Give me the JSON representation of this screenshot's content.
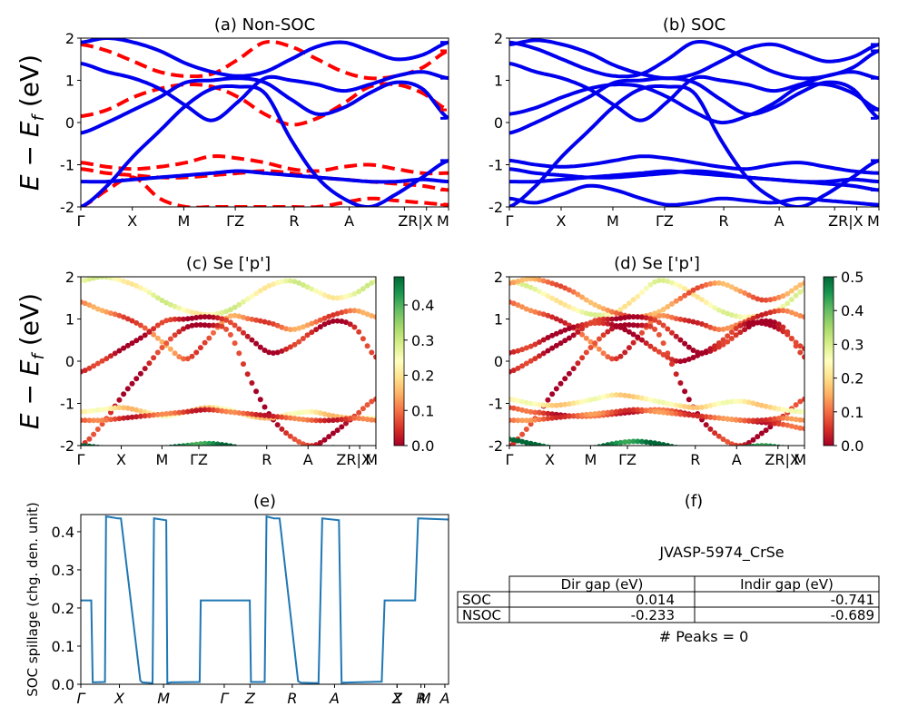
{
  "figure": {
    "ylabel_main": "E − E_f (eV)"
  },
  "chart_data": [
    {
      "id": "a",
      "type": "line",
      "title": "(a) Non-SOC",
      "ylabel": "E − E_f (eV)",
      "ylim": [
        -2,
        2
      ],
      "yticks": [
        -2,
        -1,
        0,
        1,
        2
      ],
      "xticks": [
        "Γ",
        "X",
        "M",
        "ΓZ",
        "R",
        "A",
        "ZR|X",
        "M"
      ],
      "series": [
        {
          "style": "spin-down",
          "color": "#ff0000",
          "dashed": true,
          "bands": [
            [
              1.85,
              1.7,
              1.45,
              1.2,
              1.1,
              1.15,
              1.5,
              1.9,
              1.8,
              1.5,
              1.2,
              1.05,
              1.1,
              1.3,
              1.7
            ],
            [
              0.15,
              0.3,
              0.6,
              0.8,
              0.9,
              0.85,
              0.6,
              0.2,
              -0.05,
              0.1,
              0.45,
              0.85,
              0.9,
              0.7,
              0.3
            ],
            [
              -0.95,
              -1.05,
              -1.1,
              -1.05,
              -0.95,
              -0.8,
              -0.85,
              -0.95,
              -1.1,
              -1.15,
              -1.05,
              -1.0,
              -1.1,
              -1.2,
              -1.2
            ],
            [
              -1.1,
              -1.2,
              -1.25,
              -1.3,
              -1.3,
              -1.25,
              -1.2,
              -1.15,
              -1.2,
              -1.3,
              -1.35,
              -1.4,
              -1.45,
              -1.5,
              -1.6
            ],
            [
              -2.0,
              -1.6,
              -1.3,
              -1.8,
              -2.0,
              -2.0,
              -2.0,
              -2.0,
              -2.0,
              -2.0,
              -1.9,
              -1.8,
              -1.85,
              -1.9,
              -1.95
            ]
          ]
        },
        {
          "style": "spin-up",
          "color": "#0000ee",
          "dashed": false,
          "bands": [
            [
              1.9,
              2.0,
              1.9,
              1.7,
              1.4,
              1.2,
              1.1,
              1.2,
              1.5,
              1.8,
              1.9,
              1.7,
              1.5,
              1.6,
              1.9
            ],
            [
              1.4,
              1.2,
              1.05,
              0.8,
              0.4,
              0.05,
              0.5,
              1.05,
              1.0,
              0.9,
              0.75,
              0.9,
              1.1,
              1.2,
              1.05
            ],
            [
              -0.25,
              0.0,
              0.3,
              0.6,
              0.95,
              1.0,
              1.05,
              0.95,
              0.55,
              0.2,
              0.35,
              0.7,
              0.95,
              0.8,
              0.1
            ],
            [
              -2.0,
              -1.5,
              -0.8,
              -0.2,
              0.4,
              0.8,
              0.85,
              0.7,
              -0.4,
              -1.3,
              -1.8,
              -2.0,
              -1.7,
              -1.3,
              -0.9
            ],
            [
              -1.4,
              -1.4,
              -1.35,
              -1.3,
              -1.25,
              -1.2,
              -1.15,
              -1.2,
              -1.25,
              -1.3,
              -1.35,
              -1.4,
              -1.4,
              -1.35,
              -1.4
            ]
          ]
        }
      ]
    },
    {
      "id": "b",
      "type": "line",
      "title": "(b) SOC",
      "ylim": [
        -2,
        2
      ],
      "yticks": [
        -2,
        -1,
        0,
        1,
        2
      ],
      "xticks": [
        "Γ",
        "X",
        "M",
        "ΓZ",
        "R",
        "A",
        "ZR|X",
        "M"
      ],
      "series": [
        {
          "style": "bands",
          "color": "#0000ee",
          "dashed": false,
          "bands": [
            [
              1.9,
              1.75,
              1.5,
              1.25,
              1.1,
              1.15,
              1.5,
              1.9,
              1.8,
              1.5,
              1.2,
              1.05,
              1.1,
              1.3,
              1.7
            ],
            [
              1.85,
              1.95,
              1.85,
              1.65,
              1.35,
              1.15,
              1.05,
              1.15,
              1.45,
              1.75,
              1.85,
              1.65,
              1.45,
              1.55,
              1.85
            ],
            [
              1.4,
              1.2,
              1.05,
              0.8,
              0.4,
              0.05,
              0.5,
              1.05,
              1.0,
              0.9,
              0.75,
              0.9,
              1.1,
              1.2,
              1.05
            ],
            [
              0.2,
              0.35,
              0.6,
              0.8,
              0.9,
              0.85,
              0.6,
              0.25,
              0.0,
              0.15,
              0.45,
              0.85,
              0.9,
              0.7,
              0.3
            ],
            [
              -0.25,
              0.0,
              0.3,
              0.6,
              0.95,
              1.0,
              1.05,
              0.95,
              0.55,
              0.2,
              0.35,
              0.7,
              0.95,
              0.8,
              0.1
            ],
            [
              -2.0,
              -1.5,
              -0.8,
              -0.2,
              0.4,
              0.8,
              0.85,
              0.7,
              -0.4,
              -1.3,
              -1.8,
              -2.0,
              -1.7,
              -1.3,
              -0.9
            ],
            [
              -0.9,
              -1.0,
              -1.05,
              -1.0,
              -0.9,
              -0.8,
              -0.85,
              -0.95,
              -1.05,
              -1.1,
              -1.0,
              -0.95,
              -1.05,
              -1.15,
              -1.2
            ],
            [
              -1.1,
              -1.2,
              -1.25,
              -1.3,
              -1.3,
              -1.25,
              -1.2,
              -1.15,
              -1.2,
              -1.3,
              -1.35,
              -1.4,
              -1.45,
              -1.5,
              -1.6
            ],
            [
              -1.4,
              -1.4,
              -1.35,
              -1.3,
              -1.25,
              -1.2,
              -1.15,
              -1.2,
              -1.25,
              -1.3,
              -1.35,
              -1.4,
              -1.4,
              -1.35,
              -1.4
            ],
            [
              -1.8,
              -1.9,
              -1.7,
              -1.5,
              -1.6,
              -1.8,
              -1.95,
              -1.9,
              -1.8,
              -1.85,
              -1.9,
              -1.8,
              -1.85,
              -1.9,
              -1.95
            ]
          ]
        }
      ]
    },
    {
      "id": "c",
      "type": "scatter",
      "title": "(c)  Se ['p']",
      "ylabel": "E − E_f (eV)",
      "ylim": [
        -2,
        2
      ],
      "yticks": [
        -2,
        -1,
        0,
        1,
        2
      ],
      "xticks": [
        "Γ",
        "X",
        "M",
        "ΓZ",
        "R",
        "A",
        "ZR|X",
        "M"
      ],
      "colorbar": {
        "min": 0.0,
        "max": 0.48,
        "ticks": [
          0.0,
          0.1,
          0.2,
          0.3,
          0.4
        ]
      },
      "bands": [
        {
          "weight": 0.25,
          "values": [
            1.9,
            2.0,
            1.9,
            1.7,
            1.4,
            1.2,
            1.1,
            1.2,
            1.5,
            1.8,
            1.9,
            1.7,
            1.5,
            1.6,
            1.9
          ]
        },
        {
          "weight": 0.1,
          "values": [
            1.4,
            1.2,
            1.05,
            0.8,
            0.4,
            0.05,
            0.5,
            1.05,
            1.0,
            0.9,
            0.75,
            0.9,
            1.1,
            1.2,
            1.05
          ]
        },
        {
          "weight": 0.02,
          "values": [
            -0.25,
            0.0,
            0.3,
            0.6,
            0.95,
            1.0,
            1.05,
            0.95,
            0.55,
            0.2,
            0.35,
            0.7,
            0.95,
            0.8,
            0.1
          ]
        },
        {
          "weight": 0.03,
          "values": [
            -2.0,
            -1.5,
            -0.8,
            -0.2,
            0.4,
            0.8,
            0.85,
            0.7,
            -0.4,
            -1.3,
            -1.8,
            -2.0,
            -1.7,
            -1.3,
            -0.9
          ]
        },
        {
          "weight": 0.2,
          "values": [
            -1.2,
            -1.15,
            -1.1,
            -1.2,
            -1.3,
            -1.2,
            -1.1,
            -1.15,
            -1.3,
            -1.35,
            -1.25,
            -1.2,
            -1.3,
            -1.35,
            -1.35
          ]
        },
        {
          "weight": 0.07,
          "values": [
            -1.4,
            -1.4,
            -1.35,
            -1.3,
            -1.25,
            -1.2,
            -1.15,
            -1.2,
            -1.25,
            -1.3,
            -1.35,
            -1.4,
            -1.4,
            -1.35,
            -1.4
          ]
        },
        {
          "weight": 0.45,
          "values": [
            -2.0,
            -2.05,
            -2.1,
            -2.1,
            -2.05,
            -2.0,
            -1.95,
            -2.0,
            -2.1,
            -2.1,
            -2.1,
            -2.1,
            -2.05,
            -2.1,
            -2.1
          ]
        }
      ]
    },
    {
      "id": "d",
      "type": "scatter",
      "title": "(d) Se ['p']",
      "ylim": [
        -2,
        2
      ],
      "yticks": [
        -2,
        -1,
        0,
        1,
        2
      ],
      "xticks": [
        "Γ",
        "X",
        "M",
        "ΓZ",
        "R",
        "A",
        "ZR|X",
        "M"
      ],
      "colorbar": {
        "min": 0.0,
        "max": 0.5,
        "ticks": [
          0.0,
          0.1,
          0.2,
          0.3,
          0.4,
          0.5
        ]
      },
      "bands": [
        {
          "weight": 0.25,
          "values": [
            1.9,
            1.75,
            1.5,
            1.25,
            1.1,
            1.15,
            1.5,
            1.9,
            1.8,
            1.5,
            1.2,
            1.05,
            1.1,
            1.3,
            1.7
          ]
        },
        {
          "weight": 0.12,
          "values": [
            1.85,
            1.95,
            1.85,
            1.65,
            1.35,
            1.15,
            1.05,
            1.15,
            1.45,
            1.75,
            1.85,
            1.65,
            1.45,
            1.55,
            1.85
          ]
        },
        {
          "weight": 0.08,
          "values": [
            1.4,
            1.2,
            1.05,
            0.8,
            0.4,
            0.05,
            0.5,
            1.05,
            1.0,
            0.9,
            0.75,
            0.9,
            1.1,
            1.2,
            1.05
          ]
        },
        {
          "weight": 0.02,
          "values": [
            0.2,
            0.35,
            0.6,
            0.8,
            0.9,
            0.85,
            0.6,
            0.25,
            0.0,
            0.15,
            0.45,
            0.85,
            0.9,
            0.7,
            0.3
          ]
        },
        {
          "weight": 0.02,
          "values": [
            -0.25,
            0.0,
            0.3,
            0.6,
            0.95,
            1.0,
            1.05,
            0.95,
            0.55,
            0.2,
            0.35,
            0.7,
            0.95,
            0.8,
            0.1
          ]
        },
        {
          "weight": 0.03,
          "values": [
            -2.0,
            -1.5,
            -0.8,
            -0.2,
            0.4,
            0.8,
            0.85,
            0.7,
            -0.4,
            -1.3,
            -1.8,
            -2.0,
            -1.7,
            -1.3,
            -0.9
          ]
        },
        {
          "weight": 0.22,
          "values": [
            -0.9,
            -1.0,
            -1.05,
            -1.0,
            -0.9,
            -0.8,
            -0.85,
            -0.95,
            -1.05,
            -1.1,
            -1.0,
            -0.95,
            -1.05,
            -1.15,
            -1.2
          ]
        },
        {
          "weight": 0.06,
          "values": [
            -1.1,
            -1.2,
            -1.25,
            -1.3,
            -1.3,
            -1.25,
            -1.2,
            -1.15,
            -1.2,
            -1.3,
            -1.35,
            -1.4,
            -1.45,
            -1.5,
            -1.6
          ]
        },
        {
          "weight": 0.09,
          "values": [
            -1.4,
            -1.4,
            -1.35,
            -1.3,
            -1.25,
            -1.2,
            -1.15,
            -1.2,
            -1.25,
            -1.3,
            -1.35,
            -1.4,
            -1.4,
            -1.35,
            -1.4
          ]
        },
        {
          "weight": 0.48,
          "values": [
            -1.85,
            -1.95,
            -2.05,
            -2.1,
            -2.05,
            -1.95,
            -1.9,
            -1.95,
            -2.05,
            -2.1,
            -2.1,
            -2.05,
            -2.0,
            -2.05,
            -2.1
          ]
        }
      ]
    },
    {
      "id": "e",
      "type": "line",
      "title": "(e)",
      "ylabel": "SOC spillage (chg. den. unit)",
      "ylim": [
        0.0,
        0.445
      ],
      "yticks": [
        0.0,
        0.1,
        0.2,
        0.3,
        0.4
      ],
      "xticks": [
        "Γ",
        "X",
        "M",
        "Γ",
        "Z",
        "R",
        "A",
        "X",
        "Z",
        "R",
        "M",
        "A"
      ],
      "x": [
        0,
        2.8,
        3.2,
        6.5,
        6.8,
        10,
        10.8,
        16,
        16.5,
        19.3,
        19.7,
        23,
        23.3,
        24.3,
        24.6,
        32,
        32.3,
        41.5,
        41.8,
        45.5,
        45.8,
        49.5,
        50,
        52,
        53.5,
        58.5,
        59.2,
        64,
        65,
        69.5,
        70.2,
        81,
        81.8,
        90,
        90.8,
        99
      ],
      "values": [
        0.22,
        0.22,
        0.005,
        0.006,
        0.44,
        0.435,
        0.435,
        0.01,
        0.005,
        0.003,
        0.435,
        0.43,
        0.003,
        0.005,
        0.005,
        0.006,
        0.22,
        0.22,
        0.22,
        0.22,
        0.006,
        0.006,
        0.44,
        0.435,
        0.435,
        0.008,
        0.004,
        0.003,
        0.435,
        0.43,
        0.004,
        0.007,
        0.22,
        0.22,
        0.435,
        0.432
      ]
    }
  ],
  "panel_f": {
    "title": "(f)",
    "material": "JVASP-5974_CrSe",
    "table": {
      "headers": [
        "",
        "Dir gap (eV)",
        "Indir gap (eV)"
      ],
      "rows": [
        [
          "SOC",
          "0.014",
          "-0.741"
        ],
        [
          "NSOC",
          "-0.233",
          "-0.689"
        ]
      ]
    },
    "peaks": "# Peaks = 0"
  }
}
